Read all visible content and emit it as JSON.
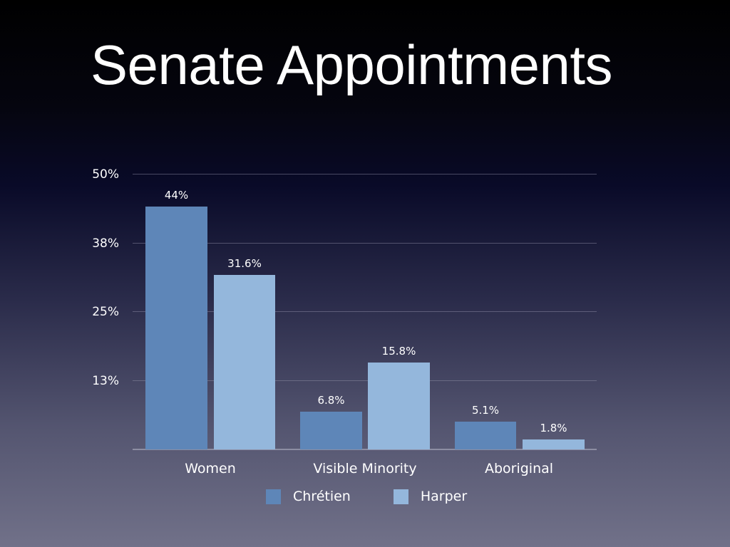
{
  "slide": {
    "title": "Senate Appointments"
  },
  "chart_data": {
    "type": "bar",
    "title": "Senate Appointments",
    "xlabel": "",
    "ylabel": "",
    "categories": [
      "Women",
      "Visible Minority",
      "Aboriginal"
    ],
    "series": [
      {
        "name": "Chrétien",
        "color": "#5e86b8",
        "values": [
          44,
          6.8,
          5.1
        ],
        "labels": [
          "44%",
          "6.8%",
          "5.1%"
        ]
      },
      {
        "name": "Harper",
        "color": "#94b7dc",
        "values": [
          31.6,
          15.8,
          1.8
        ],
        "labels": [
          "31.6%",
          "15.8%",
          "1.8%"
        ]
      }
    ],
    "yticks": [
      {
        "value": 50,
        "label": "50%"
      },
      {
        "value": 37.5,
        "label": "38%"
      },
      {
        "value": 25,
        "label": "25%"
      },
      {
        "value": 12.5,
        "label": "13%"
      }
    ],
    "ylim": [
      0,
      50
    ],
    "grid": true,
    "legend_position": "bottom"
  }
}
